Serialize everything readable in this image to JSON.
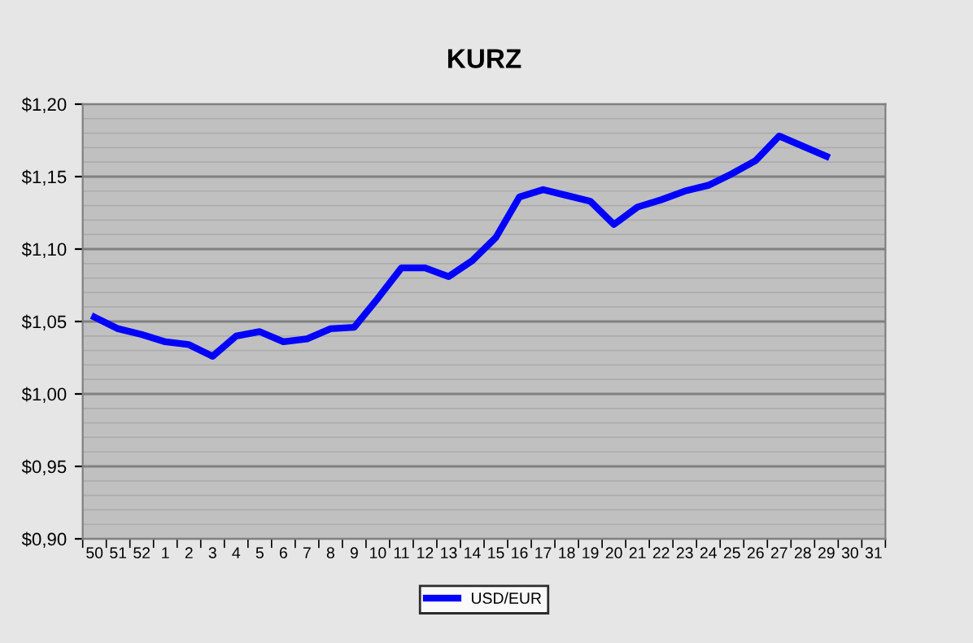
{
  "chart_data": {
    "type": "line",
    "title": "KURZ",
    "categories": [
      "50",
      "51",
      "52",
      "1",
      "2",
      "3",
      "4",
      "5",
      "6",
      "7",
      "8",
      "9",
      "10",
      "11",
      "12",
      "13",
      "14",
      "15",
      "16",
      "17",
      "18",
      "19",
      "20",
      "21",
      "22",
      "23",
      "24",
      "25",
      "26",
      "27",
      "28",
      "29",
      "30",
      "31"
    ],
    "series": [
      {
        "name": "USD/EUR",
        "color": "#0000ff",
        "values": [
          1.053,
          1.045,
          1.041,
          1.036,
          1.034,
          1.026,
          1.04,
          1.043,
          1.036,
          1.038,
          1.045,
          1.046,
          1.066,
          1.087,
          1.087,
          1.081,
          1.092,
          1.108,
          1.136,
          1.141,
          1.137,
          1.133,
          1.117,
          1.129,
          1.134,
          1.14,
          1.144,
          1.152,
          1.161,
          1.178,
          1.171,
          1.164,
          null,
          null
        ]
      }
    ],
    "ylim": [
      0.9,
      1.2
    ],
    "yticks": [
      {
        "value": 0.9,
        "label": "$0,90"
      },
      {
        "value": 0.95,
        "label": "$0,95"
      },
      {
        "value": 1.0,
        "label": "$1,00"
      },
      {
        "value": 1.05,
        "label": "$1,05"
      },
      {
        "value": 1.1,
        "label": "$1,10"
      },
      {
        "value": 1.15,
        "label": "$1,15"
      },
      {
        "value": 1.2,
        "label": "$1,20"
      }
    ],
    "grid": "y",
    "legend": "bottom",
    "marker": "none",
    "line_style": "solid"
  }
}
